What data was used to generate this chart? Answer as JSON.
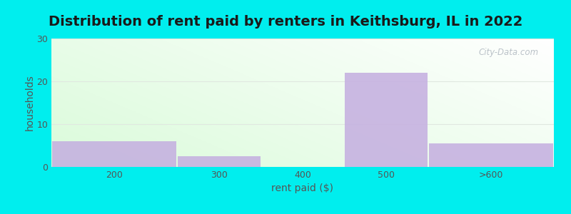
{
  "title": "Distribution of rent paid by renters in Keithsburg, IL in 2022",
  "xlabel": "rent paid ($)",
  "ylabel": "households",
  "bar_color": "#c4aee0",
  "background_outer": "#00eeee",
  "categories": [
    "200",
    "300",
    "400",
    "500",
    ">600"
  ],
  "values": [
    6,
    2.5,
    0,
    22,
    5.5
  ],
  "bin_edges": [
    100,
    250,
    350,
    450,
    550,
    700
  ],
  "ylim": [
    0,
    30
  ],
  "yticks": [
    0,
    10,
    20,
    30
  ],
  "title_fontsize": 14,
  "axis_label_fontsize": 10,
  "tick_label_fontsize": 9,
  "watermark": "City-Data.com",
  "grid_color": "#e0e8e0",
  "text_color": "#555555"
}
